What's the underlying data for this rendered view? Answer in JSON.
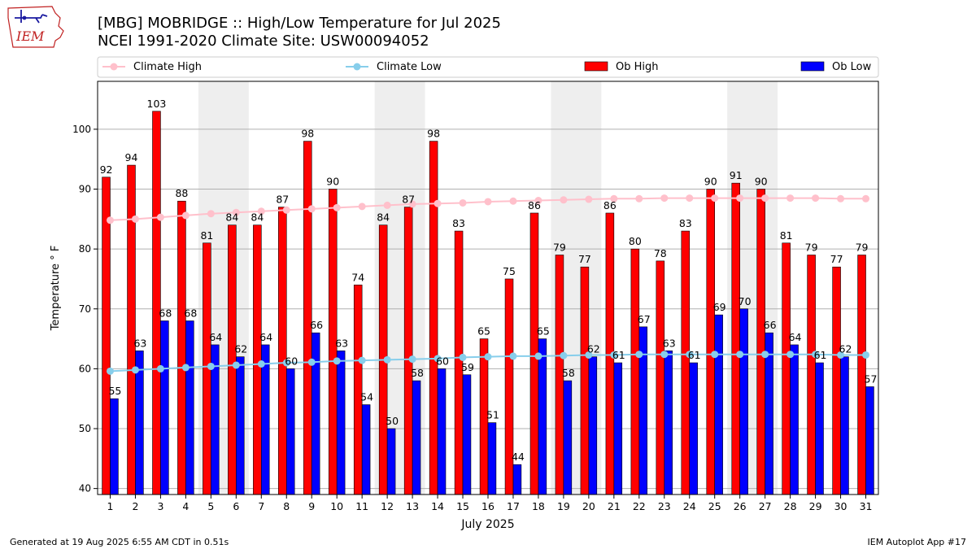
{
  "logo": {
    "text": "IEM",
    "icon": "iowa-state-outline-icon"
  },
  "header": {
    "title": "[MBG] MOBRIDGE :: High/Low Temperature for Jul 2025",
    "subtitle": "NCEI 1991-2020 Climate Site: USW00094052"
  },
  "footer": {
    "left": "Generated at 19 Aug 2025 6:55 AM CDT in 0.51s",
    "right": "IEM Autoplot App #17"
  },
  "colors": {
    "ob_high": "#ff0000",
    "ob_low": "#0000ff",
    "climate_high": "#ffc0cb",
    "climate_low": "#87ceeb",
    "weekend_shade": "#eeeeee",
    "grid": "#b0b0b0"
  },
  "chart_data": {
    "type": "bar",
    "xlabel": "July 2025",
    "ylabel": "Temperature ° F",
    "ylim": [
      39,
      108
    ],
    "yticks": [
      40,
      50,
      60,
      70,
      80,
      90,
      100
    ],
    "grid": "horizontal",
    "legend_position": "top",
    "categories": [
      "1",
      "2",
      "3",
      "4",
      "5",
      "6",
      "7",
      "8",
      "9",
      "10",
      "11",
      "12",
      "13",
      "14",
      "15",
      "16",
      "17",
      "18",
      "19",
      "20",
      "21",
      "22",
      "23",
      "24",
      "25",
      "26",
      "27",
      "28",
      "29",
      "30",
      "31"
    ],
    "shaded_days": [
      [
        5,
        6
      ],
      [
        12,
        13
      ],
      [
        19,
        20
      ],
      [
        26,
        27
      ]
    ],
    "series": [
      {
        "name": "Climate High",
        "kind": "line",
        "values": [
          84.8,
          85.0,
          85.3,
          85.6,
          85.9,
          86.1,
          86.3,
          86.5,
          86.7,
          86.9,
          87.1,
          87.3,
          87.5,
          87.6,
          87.7,
          87.9,
          88.0,
          88.1,
          88.2,
          88.3,
          88.4,
          88.4,
          88.5,
          88.5,
          88.5,
          88.5,
          88.5,
          88.5,
          88.5,
          88.4,
          88.4
        ]
      },
      {
        "name": "Climate Low",
        "kind": "line",
        "values": [
          59.6,
          59.8,
          60.0,
          60.2,
          60.4,
          60.6,
          60.8,
          61.0,
          61.1,
          61.3,
          61.4,
          61.5,
          61.6,
          61.7,
          61.9,
          62.0,
          62.1,
          62.1,
          62.2,
          62.3,
          62.3,
          62.4,
          62.4,
          62.4,
          62.4,
          62.4,
          62.4,
          62.4,
          62.4,
          62.3,
          62.3
        ]
      },
      {
        "name": "Ob High",
        "kind": "bar",
        "values": [
          92,
          94,
          103,
          88,
          81,
          84,
          84,
          87,
          98,
          90,
          74,
          84,
          87,
          98,
          83,
          65,
          75,
          86,
          79,
          77,
          86,
          80,
          78,
          83,
          90,
          91,
          90,
          81,
          79,
          77,
          79
        ]
      },
      {
        "name": "Ob Low",
        "kind": "bar",
        "values": [
          55,
          63,
          68,
          68,
          64,
          62,
          64,
          60,
          66,
          63,
          54,
          50,
          58,
          60,
          59,
          51,
          44,
          65,
          58,
          62,
          61,
          67,
          63,
          61,
          69,
          70,
          66,
          64,
          61,
          62,
          57
        ]
      }
    ]
  }
}
